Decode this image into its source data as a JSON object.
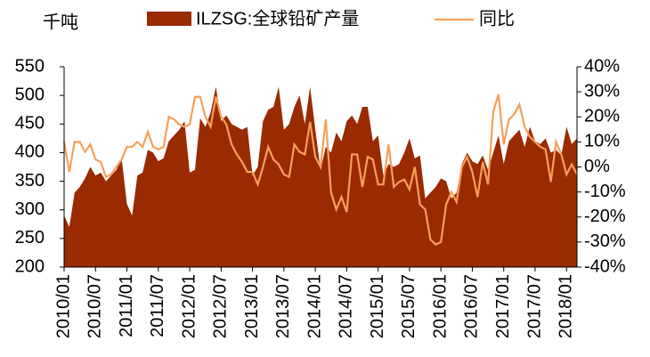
{
  "chart_data": {
    "type": "area_line",
    "y_label": "千吨",
    "categories": [
      "2010/01",
      null,
      null,
      null,
      null,
      null,
      "2010/07",
      null,
      null,
      null,
      null,
      null,
      "2011/01",
      null,
      null,
      null,
      null,
      null,
      "2011/07",
      null,
      null,
      null,
      null,
      null,
      "2012/01",
      null,
      null,
      null,
      null,
      null,
      "2012/07",
      null,
      null,
      null,
      null,
      null,
      "2013/01",
      null,
      null,
      null,
      null,
      null,
      "2013/07",
      null,
      null,
      null,
      null,
      null,
      "2014/01",
      null,
      null,
      null,
      null,
      null,
      "2014/07",
      null,
      null,
      null,
      null,
      null,
      "2015/01",
      null,
      null,
      null,
      null,
      null,
      "2015/07",
      null,
      null,
      null,
      null,
      null,
      "2016/01",
      null,
      null,
      null,
      null,
      null,
      "2016/07",
      null,
      null,
      null,
      null,
      null,
      "2017/01",
      null,
      null,
      null,
      null,
      null,
      "2017/07",
      null,
      null,
      null,
      null,
      null,
      "2018/01",
      null,
      null
    ],
    "series": [
      {
        "name": "ILZSG:全球铅矿产量",
        "color": "#9a2a00",
        "axis": "y",
        "values": [
          290,
          270,
          330,
          340,
          355,
          375,
          360,
          365,
          350,
          360,
          370,
          390,
          310,
          290,
          360,
          365,
          405,
          400,
          385,
          390,
          420,
          430,
          440,
          455,
          365,
          370,
          460,
          445,
          470,
          515,
          455,
          465,
          450,
          445,
          440,
          445,
          360,
          375,
          455,
          475,
          480,
          515,
          440,
          450,
          480,
          500,
          450,
          515,
          440,
          370,
          410,
          400,
          435,
          420,
          455,
          465,
          450,
          480,
          480,
          420,
          430,
          360,
          380,
          375,
          380,
          400,
          425,
          390,
          395,
          320,
          330,
          340,
          355,
          350,
          320,
          330,
          380,
          400,
          385,
          380,
          395,
          370,
          400,
          430,
          380,
          420,
          430,
          440,
          410,
          445,
          420,
          415,
          425,
          400,
          405,
          395,
          445,
          415,
          425
        ]
      },
      {
        "name": "同比",
        "color": "#f5a05a",
        "axis": "y2",
        "values": [
          10,
          -2,
          10,
          10,
          6,
          9,
          3,
          2,
          -4,
          -3,
          0,
          3,
          8,
          8,
          10,
          8,
          14,
          8,
          7,
          8,
          20,
          19,
          17,
          16,
          17,
          28,
          28,
          20,
          16,
          28,
          20,
          17,
          9,
          5,
          2,
          -2,
          -2,
          -7,
          0,
          8,
          3,
          1,
          -3,
          -4,
          9,
          6,
          5,
          18,
          4,
          0,
          19,
          -10,
          -17,
          -12,
          -18,
          5,
          5,
          -8,
          4,
          3,
          -7,
          -7,
          9,
          -8,
          -6,
          -5,
          -9,
          0,
          -15,
          -17,
          -29,
          -31,
          -30,
          -15,
          -10,
          -14,
          0,
          4,
          -2,
          -12,
          2,
          -7,
          22,
          29,
          9,
          19,
          21,
          25,
          16,
          12,
          10,
          8,
          7,
          -6,
          10,
          5,
          -3,
          1,
          -3
        ]
      }
    ],
    "ylim": [
      200,
      550
    ],
    "yticks": [
      200,
      250,
      300,
      350,
      400,
      450,
      500,
      550
    ],
    "y2lim": [
      -40,
      40
    ],
    "y2ticks": [
      {
        "value": -40,
        "label": "-40%"
      },
      {
        "value": -30,
        "label": "-30%"
      },
      {
        "value": -20,
        "label": "-20%"
      },
      {
        "value": -10,
        "label": "-10%"
      },
      {
        "value": 0,
        "label": "0%"
      },
      {
        "value": 10,
        "label": "10%"
      },
      {
        "value": 20,
        "label": "20%"
      },
      {
        "value": 30,
        "label": "30%"
      },
      {
        "value": 40,
        "label": "40%"
      }
    ]
  }
}
